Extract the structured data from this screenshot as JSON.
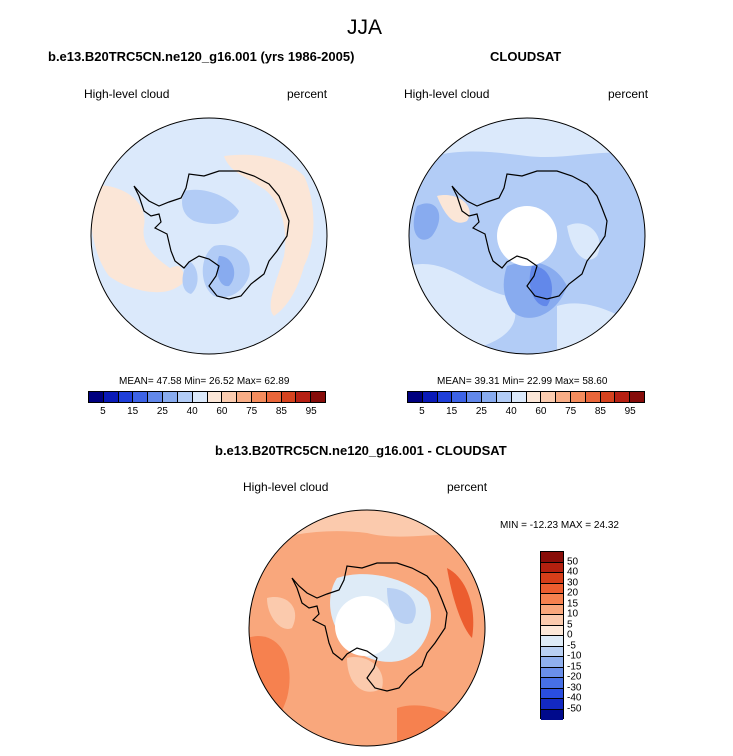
{
  "figure": {
    "season": "JJA",
    "panels": [
      {
        "id": "model",
        "title": "b.e13.B20TRC5CN.ne120_g16.001 (yrs 1986-2005)",
        "variable": "High-level cloud",
        "units": "percent",
        "stats": "MEAN=  47.58  Min=  26.52  Max=  62.89"
      },
      {
        "id": "obs",
        "title": "CLOUDSAT",
        "variable": "High-level cloud",
        "units": "percent",
        "stats": "MEAN=  39.31  Min=  22.99  Max=  58.60"
      },
      {
        "id": "diff",
        "title": "b.e13.B20TRC5CN.ne120_g16.001 - CLOUDSAT",
        "variable": "High-level cloud",
        "units": "percent",
        "stats": "MIN = -12.23 MAX =  24.32"
      }
    ],
    "colorbar_main": {
      "colors": [
        "#00007f",
        "#0a1ab8",
        "#1f3fd9",
        "#3d63e6",
        "#6288ea",
        "#88abef",
        "#b2ccf6",
        "#dbe9fb",
        "#fbe6d7",
        "#fbccb0",
        "#f8ad86",
        "#f48c5d",
        "#e9663a",
        "#d6431f",
        "#b62013",
        "#860c0a"
      ],
      "labels": [
        "5",
        "15",
        "25",
        "40",
        "60",
        "75",
        "85",
        "95"
      ]
    },
    "colorbar_diff": {
      "colors": [
        "#880d08",
        "#b3200f",
        "#d63e19",
        "#ec5d2f",
        "#f6814f",
        "#f9a77c",
        "#fbcaad",
        "#fde8d8",
        "#deebf7",
        "#b9d0f3",
        "#90b0ee",
        "#6a8fea",
        "#4770e6",
        "#2a4ee0",
        "#1329c2",
        "#000a8c"
      ],
      "labels": [
        "50",
        "40",
        "30",
        "20",
        "15",
        "10",
        "5",
        "0",
        "-5",
        "-10",
        "-15",
        "-20",
        "-30",
        "-40",
        "-50"
      ]
    }
  }
}
